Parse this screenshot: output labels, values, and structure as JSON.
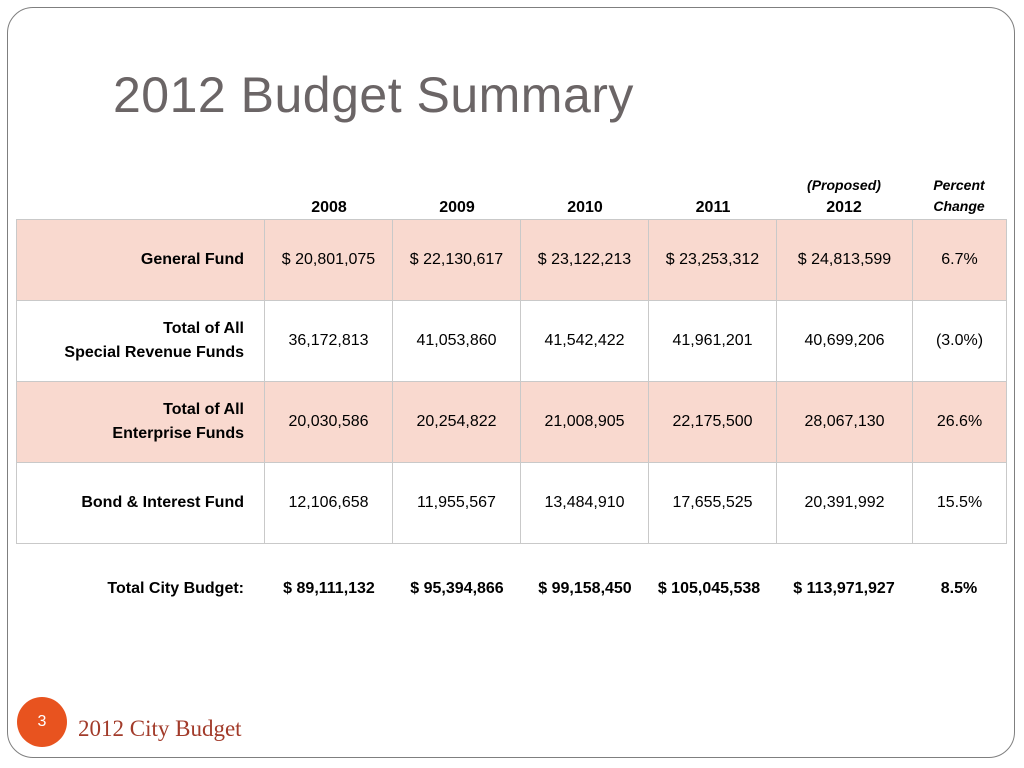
{
  "title": "2012 Budget Summary",
  "header": {
    "years": [
      "2008",
      "2009",
      "2010",
      "2011"
    ],
    "proposed_note": "(Proposed)",
    "proposed_year": "2012",
    "percent_line1": "Percent",
    "percent_line2": "Change"
  },
  "rows": [
    {
      "label_line1": "General Fund",
      "label_line2": "",
      "v2008": "$ 20,801,075",
      "v2009": "$ 22,130,617",
      "v2010": "$ 23,122,213",
      "v2011": "$ 23,253,312",
      "v2012": "$ 24,813,599",
      "pct": "6.7%"
    },
    {
      "label_line1": "Total of All",
      "label_line2": "Special Revenue Funds",
      "v2008": "36,172,813",
      "v2009": "41,053,860",
      "v2010": "41,542,422",
      "v2011": "41,961,201",
      "v2012": "40,699,206",
      "pct": "(3.0%)"
    },
    {
      "label_line1": "Total of All",
      "label_line2": "Enterprise Funds",
      "v2008": "20,030,586",
      "v2009": "20,254,822",
      "v2010": "21,008,905",
      "v2011": "22,175,500",
      "v2012": "28,067,130",
      "pct": "26.6%"
    },
    {
      "label_line1": "Bond & Interest Fund",
      "label_line2": "",
      "v2008": "12,106,658",
      "v2009": "11,955,567",
      "v2010": "13,484,910",
      "v2011": "17,655,525",
      "v2012": "20,391,992",
      "pct": "15.5%"
    }
  ],
  "total": {
    "label": "Total City Budget:",
    "v2008": "$ 89,111,132",
    "v2009": "$ 95,394,866",
    "v2010": "$ 99,158,450",
    "v2011": "$ 105,045,538",
    "v2012": "$ 113,971,927",
    "pct": "8.5%"
  },
  "footer": {
    "page_number": "3",
    "title": "2012 City Budget"
  },
  "colors": {
    "shaded_row": "#f9d9cf",
    "badge": "#e8531f",
    "footer_text": "#a23b2a",
    "title_text": "#6b6566"
  }
}
